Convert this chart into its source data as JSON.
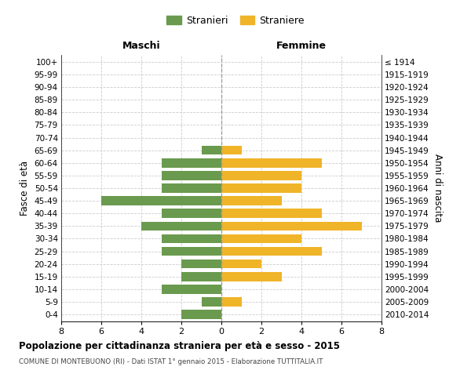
{
  "age_groups": [
    "0-4",
    "5-9",
    "10-14",
    "15-19",
    "20-24",
    "25-29",
    "30-34",
    "35-39",
    "40-44",
    "45-49",
    "50-54",
    "55-59",
    "60-64",
    "65-69",
    "70-74",
    "75-79",
    "80-84",
    "85-89",
    "90-94",
    "95-99",
    "100+"
  ],
  "anni_nascita": [
    "2010-2014",
    "2005-2009",
    "2000-2004",
    "1995-1999",
    "1990-1994",
    "1985-1989",
    "1980-1984",
    "1975-1979",
    "1970-1974",
    "1965-1969",
    "1960-1964",
    "1955-1959",
    "1950-1954",
    "1945-1949",
    "1940-1944",
    "1935-1939",
    "1930-1934",
    "1925-1929",
    "1920-1924",
    "1915-1919",
    "≤ 1914"
  ],
  "maschi": [
    2,
    1,
    3,
    2,
    2,
    3,
    3,
    4,
    3,
    6,
    3,
    3,
    3,
    1,
    0,
    0,
    0,
    0,
    0,
    0,
    0
  ],
  "femmine": [
    0,
    1,
    0,
    3,
    2,
    5,
    4,
    7,
    5,
    3,
    4,
    4,
    5,
    1,
    0,
    0,
    0,
    0,
    0,
    0,
    0
  ],
  "maschi_color": "#6a9a4e",
  "femmine_color": "#f0b429",
  "grid_color": "#cccccc",
  "title": "Popolazione per cittadinanza straniera per età e sesso - 2015",
  "subtitle": "COMUNE DI MONTEBUONO (RI) - Dati ISTAT 1° gennaio 2015 - Elaborazione TUTTITALIA.IT",
  "header_left": "Maschi",
  "header_right": "Femmine",
  "ylabel_left": "Fasce di età",
  "ylabel_right": "Anni di nascita",
  "legend_maschi": "Stranieri",
  "legend_femmine": "Straniere",
  "xlim": 8
}
